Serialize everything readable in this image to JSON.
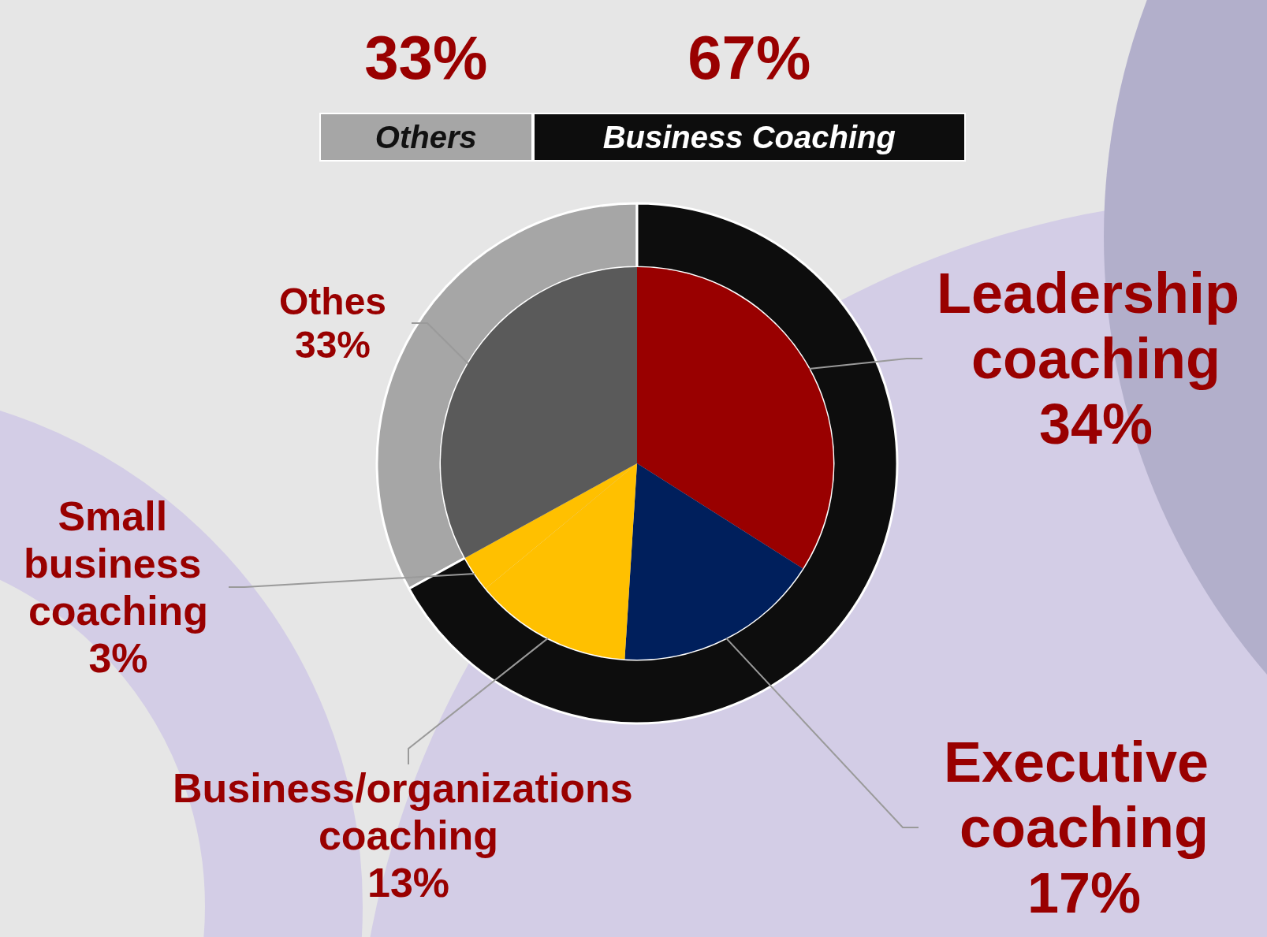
{
  "chart_data": [
    {
      "type": "pie",
      "categories": [
        "Leadership coaching",
        "Executive coaching",
        "Business/organizations coaching",
        "Small business coaching",
        "Othes"
      ],
      "values": [
        34,
        17,
        13,
        3,
        33
      ],
      "value_labels": [
        "34%",
        "17%",
        "13%",
        "3%",
        "33%"
      ],
      "colors": [
        "#990000",
        "#001f5c",
        "#ffc000",
        "#ffc000",
        "#5a5a5a"
      ]
    },
    {
      "type": "donut",
      "categories": [
        "Others",
        "Business Coaching"
      ],
      "values": [
        33,
        67
      ],
      "value_labels": [
        "33%",
        "67%"
      ],
      "colors": [
        "#a6a6a6",
        "#0d0d0d"
      ]
    }
  ]
}
